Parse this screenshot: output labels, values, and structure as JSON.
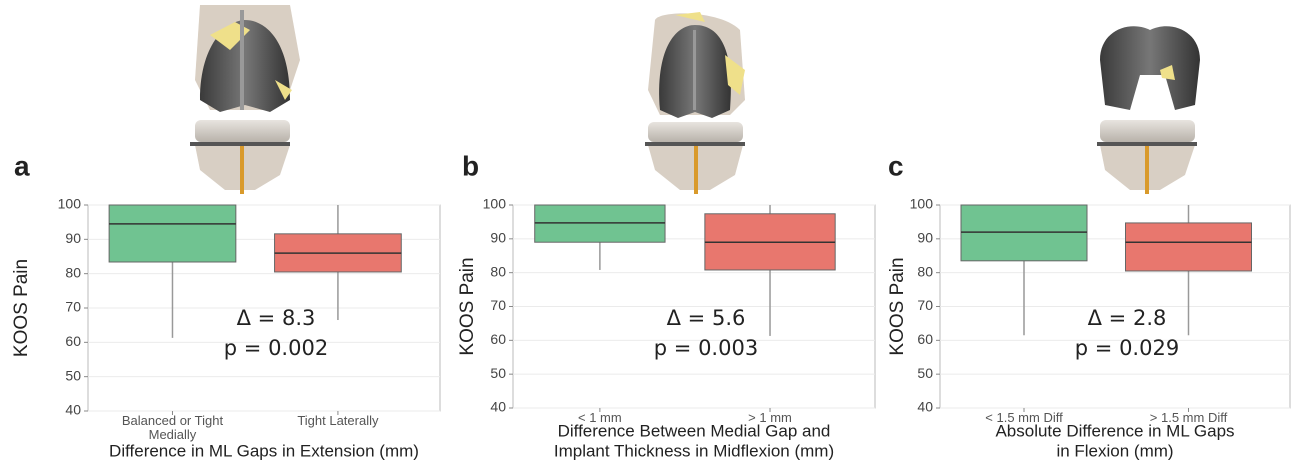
{
  "chart_data": [
    {
      "type": "box",
      "panel_label": "a",
      "ylabel": "KOOS Pain",
      "xlabel": [
        "Difference in ML Gaps in Extension (mm)"
      ],
      "categories": [
        "Balanced or Tight Medially",
        "Tight Laterally"
      ],
      "boxes": [
        {
          "whislo": 61.3,
          "q1": 83.4,
          "med": 94.5,
          "q3": 100,
          "whishi": 100,
          "color": "#70c391"
        },
        {
          "whislo": 66.5,
          "q1": 80.5,
          "med": 86,
          "q3": 91.6,
          "whishi": 100,
          "color": "#e8776e"
        }
      ],
      "annotations": [
        "Δ = 8.3",
        "p = 0.002"
      ],
      "ylim": [
        40,
        100
      ],
      "yticks": [
        40,
        50,
        60,
        70,
        80,
        90,
        100
      ],
      "grid": true
    },
    {
      "type": "box",
      "panel_label": "b",
      "ylabel": "KOOS Pain",
      "xlabel": [
        "Difference Between Medial Gap and",
        "Implant Thickness in Midflexion (mm)"
      ],
      "categories": [
        "< 1 mm",
        "> 1 mm"
      ],
      "boxes": [
        {
          "whislo": 80.8,
          "q1": 89,
          "med": 94.7,
          "q3": 100,
          "whishi": 100,
          "color": "#70c391"
        },
        {
          "whislo": 61.3,
          "q1": 80.8,
          "med": 89,
          "q3": 97.4,
          "whishi": 100,
          "color": "#e8776e"
        }
      ],
      "annotations": [
        "Δ = 5.6",
        "p = 0.003"
      ],
      "ylim": [
        40,
        100
      ],
      "yticks": [
        40,
        50,
        60,
        70,
        80,
        90,
        100
      ],
      "grid": true
    },
    {
      "type": "box",
      "panel_label": "c",
      "ylabel": "KOOS Pain",
      "xlabel": [
        "Absolute Difference in ML Gaps",
        "in Flexion (mm)"
      ],
      "categories": [
        "< 1.5 mm Diff",
        "> 1.5 mm Diff"
      ],
      "boxes": [
        {
          "whislo": 61.5,
          "q1": 83.5,
          "med": 92,
          "q3": 100,
          "whishi": 100,
          "color": "#70c391"
        },
        {
          "whislo": 61.5,
          "q1": 80.5,
          "med": 89,
          "q3": 94.7,
          "whishi": 100,
          "color": "#e8776e"
        }
      ],
      "annotations": [
        "Δ = 2.8",
        "p = 0.029"
      ],
      "ylim": [
        40,
        100
      ],
      "yticks": [
        40,
        50,
        60,
        70,
        80,
        90,
        100
      ],
      "grid": true
    }
  ]
}
